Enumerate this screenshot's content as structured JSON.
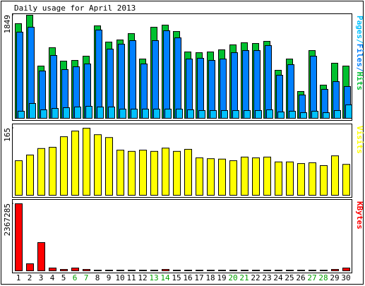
{
  "chart_data": {
    "type": "bar",
    "title": "Daily usage for April 2013",
    "categories": [
      "1",
      "2",
      "3",
      "4",
      "5",
      "6",
      "7",
      "8",
      "9",
      "10",
      "11",
      "12",
      "13",
      "14",
      "15",
      "16",
      "17",
      "18",
      "19",
      "20",
      "21",
      "22",
      "23",
      "24",
      "25",
      "26",
      "27",
      "28",
      "29",
      "30"
    ],
    "category_colors": [
      "#000000",
      "#000000",
      "#000000",
      "#000000",
      "#000000",
      "#00a000",
      "#00a000",
      "#000000",
      "#000000",
      "#000000",
      "#000000",
      "#000000",
      "#00a000",
      "#00a000",
      "#000000",
      "#000000",
      "#000000",
      "#000000",
      "#000000",
      "#00a000",
      "#00a000",
      "#000000",
      "#000000",
      "#000000",
      "#000000",
      "#000000",
      "#00a000",
      "#00a000",
      "#000000",
      "#000000"
    ],
    "legend_separator": "/",
    "panels": [
      {
        "ylim": [
          0,
          1849
        ],
        "yticks": [
          1849
        ],
        "series": [
          {
            "name": "Pages",
            "color": "#00c0ff",
            "values": [
              127,
              266,
              152,
              177,
              190,
              203,
              215,
              203,
              203,
              165,
              165,
              165,
              165,
              165,
              165,
              152,
              139,
              139,
              139,
              139,
              139,
              139,
              152,
              114,
              127,
              101,
              127,
              101,
              139,
              241
            ]
          },
          {
            "name": "Files",
            "color": "#0080ff",
            "values": [
              1545,
              1633,
              848,
              1127,
              874,
              924,
              975,
              1583,
              1241,
              1329,
              1393,
              975,
              1393,
              1570,
              1443,
              1063,
              1076,
              1038,
              1063,
              1177,
              1215,
              1215,
              1304,
              772,
              962,
              418,
              1114,
              519,
              658,
              570
            ]
          },
          {
            "name": "Hits",
            "color": "#00c030",
            "values": [
              1697,
              1849,
              937,
              1266,
              1025,
              1038,
              1114,
              1658,
              1367,
              1405,
              1519,
              1063,
              1633,
              1671,
              1557,
              1190,
              1177,
              1190,
              1228,
              1317,
              1355,
              1342,
              1380,
              861,
              1063,
              481,
              1215,
              595,
              988,
              937
            ]
          }
        ]
      },
      {
        "ylim": [
          0,
          165
        ],
        "yticks": [
          165
        ],
        "series": [
          {
            "name": "Visits",
            "color": "#ffff00",
            "values": [
              85,
              99,
              115,
              118,
              144,
              158,
              165,
              149,
              142,
              111,
              108,
              111,
              108,
              116,
              108,
              113,
              92,
              90,
              89,
              85,
              94,
              92,
              94,
              82,
              82,
              78,
              80,
              73,
              97,
              76
            ]
          }
        ]
      },
      {
        "ylim": [
          0,
          2367285
        ],
        "yticks": [
          2367285
        ],
        "series": [
          {
            "name": "KBytes",
            "color": "#ff0000",
            "values": [
              2367285,
              249188,
              996752,
              99675,
              49838,
              99675,
              49838,
              24919,
              24919,
              24919,
              24919,
              24919,
              24919,
              49838,
              24919,
              24919,
              24919,
              24919,
              24919,
              24919,
              24919,
              24919,
              24919,
              24919,
              24919,
              24919,
              24919,
              24919,
              49838,
              99675
            ]
          }
        ]
      }
    ]
  }
}
